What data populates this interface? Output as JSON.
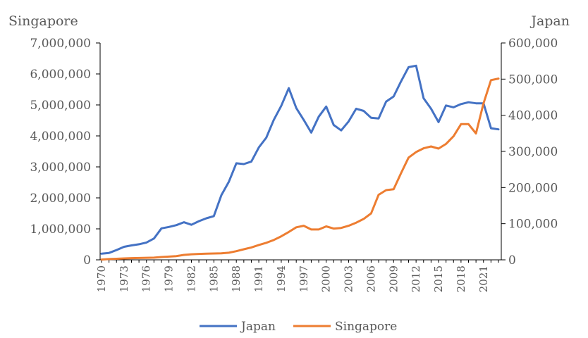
{
  "chart_data": {
    "type": "line",
    "y_left_label": "Singapore",
    "y_right_label": "Japan",
    "ylim_left": [
      0,
      7000000
    ],
    "ylim_right": [
      0,
      600000
    ],
    "yticks_left": [
      "0",
      "1,000,000",
      "2,000,000",
      "3,000,000",
      "4,000,000",
      "5,000,000",
      "6,000,000",
      "7,000,000"
    ],
    "yticks_right": [
      "0",
      "100,000",
      "200,000",
      "300,000",
      "400,000",
      "500,000",
      "600,000"
    ],
    "x_tick_labels": [
      "1970",
      "1973",
      "1976",
      "1979",
      "1982",
      "1985",
      "1988",
      "1991",
      "1994",
      "1997",
      "2000",
      "2003",
      "2006",
      "2009",
      "2012",
      "2015",
      "2018",
      "2021"
    ],
    "x": [
      1970,
      1971,
      1972,
      1973,
      1974,
      1975,
      1976,
      1977,
      1978,
      1979,
      1980,
      1981,
      1982,
      1983,
      1984,
      1985,
      1986,
      1987,
      1988,
      1989,
      1990,
      1991,
      1992,
      1993,
      1994,
      1995,
      1996,
      1997,
      1998,
      1999,
      2000,
      2001,
      2002,
      2003,
      2004,
      2005,
      2006,
      2007,
      2008,
      2009,
      2010,
      2011,
      2012,
      2013,
      2014,
      2015,
      2016,
      2017,
      2018,
      2019,
      2020,
      2021,
      2022,
      2023
    ],
    "grid": false,
    "legend_position": "bottom",
    "series": [
      {
        "name": "Japan",
        "axis": "right",
        "color": "#4472C4",
        "values": [
          17000,
          19000,
          27000,
          36000,
          40000,
          43000,
          48000,
          59000,
          87000,
          91000,
          96000,
          104000,
          97000,
          107000,
          115000,
          121000,
          179000,
          216000,
          267000,
          265000,
          272000,
          311000,
          338000,
          387000,
          426000,
          475000,
          420000,
          387000,
          352000,
          396000,
          424000,
          373000,
          358000,
          383000,
          418000,
          412000,
          393000,
          391000,
          438000,
          452000,
          494000,
          533000,
          537000,
          447000,
          418000,
          381000,
          427000,
          422000,
          431000,
          436000,
          433000,
          433000,
          364000,
          361000
        ]
      },
      {
        "name": "Singapore",
        "axis": "left",
        "color": "#ED7D31",
        "values": [
          10000,
          25000,
          35000,
          45000,
          55000,
          60000,
          65000,
          70000,
          90000,
          105000,
          120000,
          160000,
          180000,
          190000,
          200000,
          205000,
          210000,
          230000,
          280000,
          340000,
          400000,
          480000,
          550000,
          640000,
          760000,
          900000,
          1050000,
          1100000,
          980000,
          980000,
          1080000,
          1010000,
          1030000,
          1100000,
          1200000,
          1320000,
          1500000,
          2100000,
          2250000,
          2280000,
          2800000,
          3300000,
          3480000,
          3600000,
          3660000,
          3590000,
          3740000,
          3990000,
          4380000,
          4380000,
          4080000,
          5050000,
          5800000,
          5850000
        ]
      }
    ]
  }
}
